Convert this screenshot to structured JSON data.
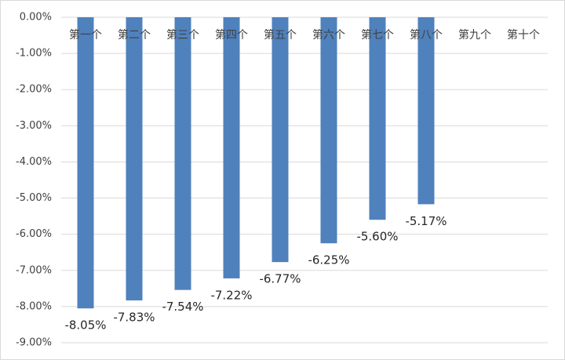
{
  "chart_data": {
    "type": "bar",
    "categories": [
      "第一个",
      "第二个",
      "第三个",
      "第四个",
      "第五个",
      "第六个",
      "第七个",
      "第八个",
      "第九个",
      "第十个"
    ],
    "values": [
      -8.05,
      -7.83,
      -7.54,
      -7.22,
      -6.77,
      -6.25,
      -5.6,
      -5.17,
      null,
      null
    ],
    "value_labels": [
      "-8.05%",
      "-7.83%",
      "-7.54%",
      "-7.22%",
      "-6.77%",
      "-6.25%",
      "-5.60%",
      "-5.17%",
      null,
      null
    ],
    "color": "#4f81bd",
    "ylim": [
      -9,
      0
    ],
    "yticks": [
      {
        "value": 0,
        "label": "0.00%"
      },
      {
        "value": -1,
        "label": "-1.00%"
      },
      {
        "value": -2,
        "label": "-2.00%"
      },
      {
        "value": -3,
        "label": "-3.00%"
      },
      {
        "value": -4,
        "label": "-4.00%"
      },
      {
        "value": -5,
        "label": "-5.00%"
      },
      {
        "value": -6,
        "label": "-6.00%"
      },
      {
        "value": -7,
        "label": "-7.00%"
      },
      {
        "value": -8,
        "label": "-8.00%"
      },
      {
        "value": -9,
        "label": "-9.00%"
      }
    ],
    "grid": true
  }
}
